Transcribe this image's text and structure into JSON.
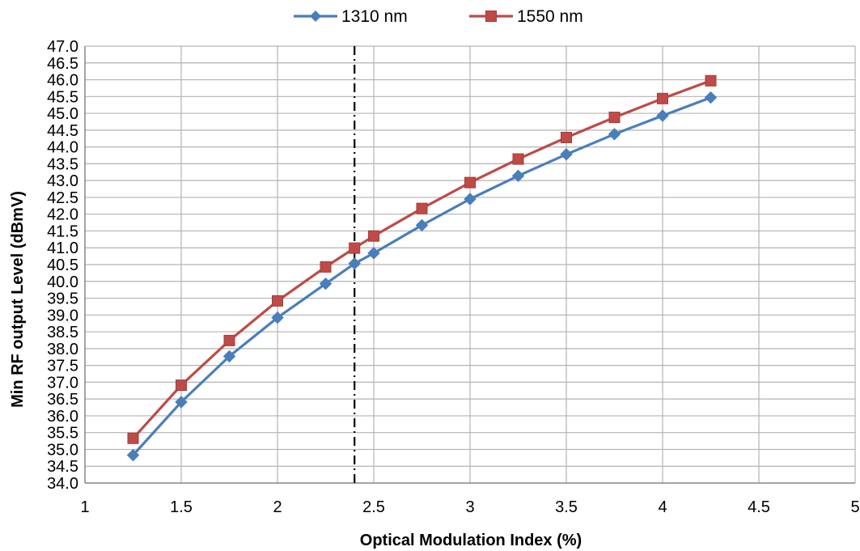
{
  "chart_data": {
    "type": "line",
    "title": "",
    "xlabel": "Optical Modulation  Index (%)",
    "ylabel": "Min RF output Level (dBmV)",
    "xlim": [
      1,
      5
    ],
    "ylim": [
      34.0,
      47.0
    ],
    "xticks": [
      "1",
      "1.5",
      "2",
      "2.5",
      "3",
      "3.5",
      "4",
      "4.5",
      "5"
    ],
    "yticks": [
      "34.0",
      "34.5",
      "35.0",
      "35.5",
      "36.0",
      "36.5",
      "37.0",
      "37.5",
      "38.0",
      "38.5",
      "39.0",
      "39.5",
      "40.0",
      "40.5",
      "41.0",
      "41.5",
      "42.0",
      "42.5",
      "43.0",
      "43.5",
      "44.0",
      "44.5",
      "45.0",
      "45.5",
      "46.0",
      "46.5",
      "47.0"
    ],
    "grid": true,
    "legend_position": "top",
    "reference_line": {
      "x": 2.4,
      "style": "dash-dot",
      "color": "#000000"
    },
    "x": [
      1.25,
      1.5,
      1.75,
      2.0,
      2.25,
      2.5,
      2.75,
      3.0,
      3.25,
      3.5,
      3.75,
      4.0,
      4.25
    ],
    "series": [
      {
        "name": "1310 nm",
        "color": "#4a7ebb",
        "marker": "diamond",
        "values": [
          34.83,
          36.41,
          37.77,
          38.92,
          39.93,
          40.84,
          41.67,
          42.45,
          43.14,
          43.78,
          44.38,
          44.93,
          45.47
        ]
      },
      {
        "name": "1550 nm",
        "color": "#be4b48",
        "marker": "square",
        "values": [
          35.33,
          36.91,
          38.24,
          39.42,
          40.43,
          41.35,
          42.17,
          42.94,
          43.64,
          44.28,
          44.88,
          45.44,
          45.97
        ]
      }
    ],
    "extra_points": [
      {
        "series": "1310 nm",
        "x": 2.4,
        "y": 40.53
      },
      {
        "series": "1550 nm",
        "x": 2.4,
        "y": 40.99
      }
    ]
  }
}
